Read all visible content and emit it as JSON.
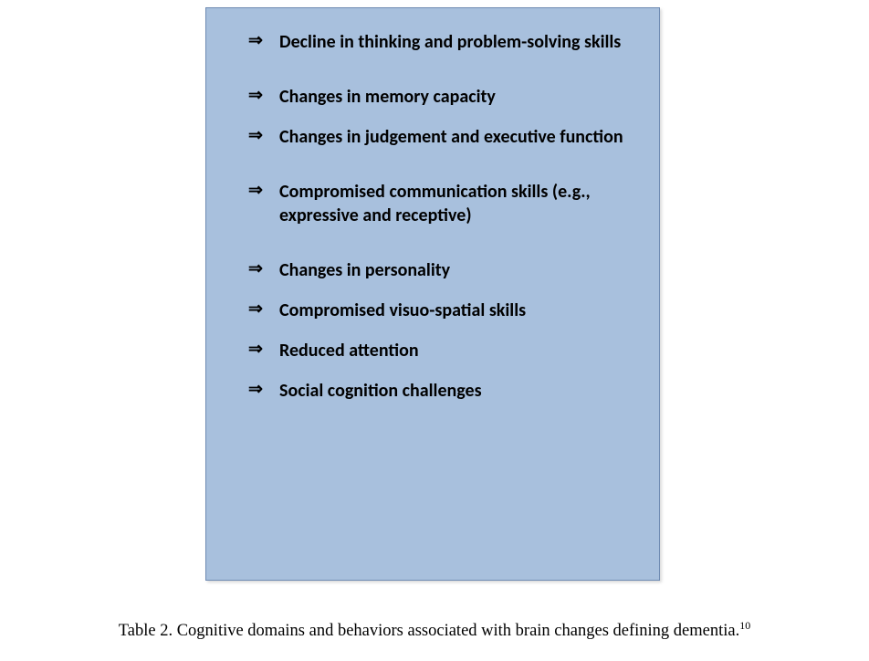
{
  "box": {
    "background_color": "#a8c0dd",
    "border_color": "#6f8bb3",
    "items": [
      {
        "text": "Decline in thinking and problem-solving skills",
        "gap": "large"
      },
      {
        "text": "Changes in memory capacity",
        "gap": "normal"
      },
      {
        "text": "Changes in judgement and executive function",
        "gap": "large"
      },
      {
        "text": "Compromised communication skills (e.g., expressive and receptive)",
        "gap": "large"
      },
      {
        "text": "Changes in personality",
        "gap": "normal"
      },
      {
        "text": "Compromised visuo-spatial skills",
        "gap": "normal"
      },
      {
        "text": "Reduced attention",
        "gap": "normal"
      },
      {
        "text": "Social cognition challenges",
        "gap": "normal"
      }
    ],
    "bullet_glyph": "⇒",
    "item_fontsize": 20,
    "item_fontweight": "bold",
    "item_color": "#000000"
  },
  "caption": {
    "prefix": "Table 2. Cognitive domains and behaviors associated with brain changes defining dementia.",
    "superscript": "10",
    "font_family": "Times New Roman",
    "fontsize": 18.5,
    "color": "#000000"
  }
}
